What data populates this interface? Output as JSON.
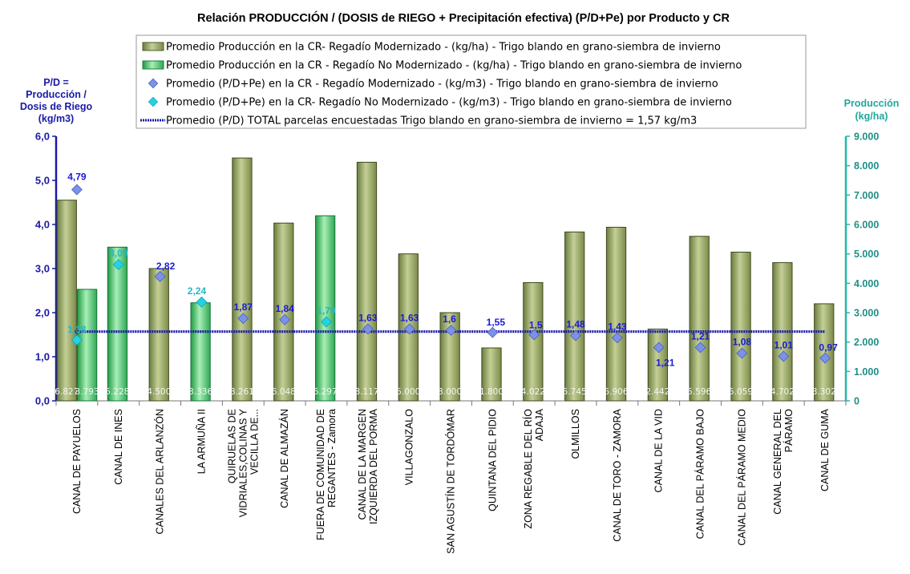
{
  "chart_data": {
    "type": "bar",
    "title": "Relación PRODUCCIÓN / (DOSIS de RIEGO + Precipitación efectiva)  (P/D+Pe) por Producto y CR",
    "ylabel_left": [
      "P/D =",
      "Producción /",
      "Dosis  de Riego",
      "(kg/m3)"
    ],
    "ylabel_right": [
      "Producción",
      "(kg/ha)"
    ],
    "ylim_left": [
      0,
      6
    ],
    "yticks_left": [
      "0,0",
      "1,0",
      "2,0",
      "3,0",
      "4,0",
      "5,0",
      "6,0"
    ],
    "ylim_right": [
      0,
      9000
    ],
    "yticks_right": [
      "0",
      "1.000",
      "2.000",
      "3.000",
      "4.000",
      "5.000",
      "6.000",
      "7.000",
      "8.000",
      "9.000"
    ],
    "categories": [
      [
        "CANAL DE PAYUELOS"
      ],
      [
        "CANAL DE INES"
      ],
      [
        "CANALES DEL ARLANZÓN"
      ],
      [
        "LA ARMUÑA II"
      ],
      [
        "QUIRUELAS DE",
        "VIDRIALES,COLINAS Y",
        "VECILLA DE..."
      ],
      [
        "CANAL DE ALMAZÁN"
      ],
      [
        "FUERA DE COMUNIDAD DE",
        "REGANTES - Zamora"
      ],
      [
        "CANAL DE LA MARGEN",
        "IZQUIERDA DEL PORMA"
      ],
      [
        "VILLAGONZALO"
      ],
      [
        "SAN AGUSTÍN DE TORDÓMAR"
      ],
      [
        "QUINTANA DEL PIDIO"
      ],
      [
        "ZONA REGABLE DEL RÍO",
        "ADAJA"
      ],
      [
        "OLMILLOS"
      ],
      [
        "CANAL DE TORO - ZAMORA"
      ],
      [
        "CANAL DE LA VID"
      ],
      [
        "CANAL DEL PÁRAMO BAJO"
      ],
      [
        "CANAL DEL PÁRAMO MEDIO"
      ],
      [
        "CANAL GENERAL DEL",
        "PÁRAMO"
      ],
      [
        "CANAL DE GUMA"
      ]
    ],
    "series": [
      {
        "name": "Promedio Producción en la CR- Regadío Modernizado -  (kg/ha) - Trigo blando en grano-siembra de invierno",
        "kind": "bar",
        "axis": "right",
        "color": "#9aab6a",
        "values": [
          6827,
          null,
          4500,
          null,
          8261,
          6048,
          null,
          8117,
          5000,
          3000,
          1800,
          4022,
          5745,
          5906,
          2442,
          5596,
          5059,
          4702,
          3302
        ],
        "labels": [
          "6.827",
          "",
          "4.500",
          "",
          "8.261",
          "6.048",
          "",
          "8.117",
          "5.000",
          "3.000",
          "1.800",
          "4.022",
          "5.745",
          "5.906",
          "2.442",
          "5.596",
          "5.059",
          "4.702",
          "3.302"
        ]
      },
      {
        "name": "Promedio Producción en la CR - Regadío No Modernizado -  (kg/ha) - Trigo blando en grano-siembra de invierno",
        "kind": "bar",
        "axis": "right",
        "color": "#5fd17a",
        "values": [
          3793,
          5228,
          null,
          3336,
          null,
          null,
          6297,
          null,
          null,
          null,
          null,
          null,
          null,
          null,
          null,
          null,
          null,
          null,
          null
        ],
        "labels": [
          "3.793",
          "5.228",
          "",
          "3.336",
          "",
          "",
          "6.297",
          "",
          "",
          "",
          "",
          "",
          "",
          "",
          "",
          "",
          "",
          "",
          ""
        ]
      },
      {
        "name": "Promedio (P/D+Pe) en la CR - Regadío Modernizado - (kg/m3) - Trigo blando en grano-siembra de invierno",
        "kind": "scatter",
        "axis": "left",
        "color": "#7b93e6",
        "values": [
          4.79,
          null,
          2.82,
          null,
          1.87,
          1.84,
          null,
          1.63,
          1.63,
          1.6,
          1.55,
          1.5,
          1.48,
          1.43,
          1.21,
          1.21,
          1.08,
          1.01,
          0.97
        ],
        "labels": [
          "4,79",
          "",
          "2,82",
          "",
          "1,87",
          "1,84",
          "",
          "1,63",
          "1,63",
          "1,6",
          "1,55",
          "1,5",
          "1,48",
          "1,43",
          "1,21",
          "1,21",
          "1,08",
          "1,01",
          "0,97"
        ]
      },
      {
        "name": "Promedio (P/D+Pe) en la CR- Regadío No Modernizado - (kg/m3) - Trigo blando en grano-siembra de invierno",
        "kind": "scatter",
        "axis": "left",
        "color": "#22d3e6",
        "values": [
          1.38,
          3.09,
          null,
          2.24,
          null,
          null,
          1.79,
          null,
          null,
          null,
          null,
          null,
          null,
          null,
          null,
          null,
          null,
          null,
          null
        ],
        "labels": [
          "1,38",
          "3,09",
          "",
          "2,24",
          "",
          "",
          "1,79",
          "",
          "",
          "",
          "",
          "",
          "",
          "",
          "",
          "",
          "",
          "",
          ""
        ]
      },
      {
        "name": "Promedio (P/D) TOTAL parcelas encuestadas Trigo blando en grano-siembra de invierno = 1,57 kg/m3",
        "kind": "line",
        "axis": "left",
        "color": "#1a1aa8",
        "value": 1.57
      }
    ]
  }
}
